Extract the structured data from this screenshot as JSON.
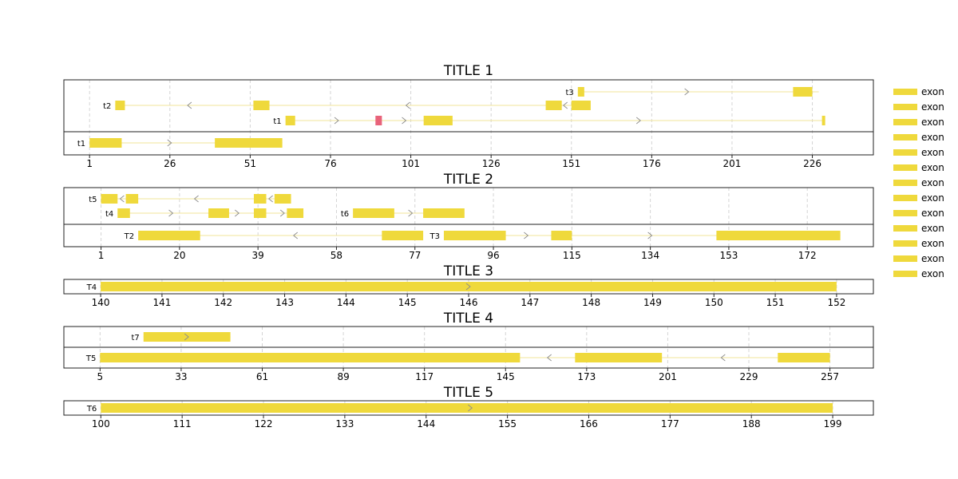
{
  "chart_data": [
    {
      "type": "gene-track",
      "title": "TITLE 1",
      "xlim": [
        -7,
        245
      ],
      "xticks": [
        1,
        26,
        51,
        76,
        101,
        126,
        151,
        176,
        201,
        226
      ],
      "grid": true,
      "lanes": [
        [
          {
            "name": "t3",
            "row": 0,
            "start": 153,
            "end": 228,
            "strand": "+",
            "exons": [
              [
                153,
                155
              ],
              [
                220,
                226
              ]
            ],
            "arrows": [
              187
            ]
          },
          {
            "name": "t2",
            "row": 1,
            "start": 9,
            "end": 157,
            "strand": "-",
            "exons": [
              [
                9,
                12
              ],
              [
                52,
                57
              ],
              [
                143,
                148
              ],
              [
                151,
                157
              ]
            ],
            "arrows": [
              32,
              100,
              149
            ]
          },
          {
            "name": "t1",
            "row": 2,
            "start": 62,
            "end": 230,
            "strand": "+",
            "exons": [
              [
                62,
                65
              ],
              [
                90,
                92,
                "highlight"
              ],
              [
                105,
                114
              ],
              [
                229,
                230
              ]
            ],
            "arrows": [
              78,
              99,
              172
            ]
          }
        ],
        [
          {
            "name": "t1",
            "row": 0,
            "start": 1,
            "end": 61,
            "strand": "+",
            "exons": [
              [
                1,
                11
              ],
              [
                40,
                61
              ]
            ],
            "arrows": [
              26
            ]
          }
        ]
      ]
    },
    {
      "type": "gene-track",
      "title": "TITLE 2",
      "xlim": [
        -8,
        188
      ],
      "xticks": [
        1,
        20,
        39,
        58,
        77,
        96,
        115,
        134,
        153,
        172
      ],
      "grid": true,
      "lanes": [
        [
          {
            "name": "t5",
            "row": 0,
            "start": 1,
            "end": 47,
            "strand": "-",
            "exons": [
              [
                1,
                5
              ],
              [
                7,
                10
              ],
              [
                38,
                41
              ],
              [
                43,
                47
              ]
            ],
            "arrows": [
              6,
              24,
              42
            ]
          },
          {
            "name": "t4",
            "row": 1,
            "start": 5,
            "end": 50,
            "strand": "+",
            "exons": [
              [
                5,
                8
              ],
              [
                27,
                32
              ],
              [
                38,
                41
              ],
              [
                46,
                50
              ]
            ],
            "arrows": [
              18,
              34,
              45
            ]
          },
          {
            "name": "t6",
            "row": 1,
            "start": 62,
            "end": 89,
            "strand": "+",
            "exons": [
              [
                62,
                72
              ],
              [
                79,
                89
              ]
            ],
            "arrows": [
              76
            ]
          }
        ],
        [
          {
            "name": "T2",
            "row": 0,
            "start": 10,
            "end": 79,
            "strand": "-",
            "exons": [
              [
                10,
                25
              ],
              [
                69,
                79
              ]
            ],
            "arrows": [
              48
            ]
          },
          {
            "name": "T3",
            "row": 0,
            "start": 84,
            "end": 180,
            "strand": "+",
            "exons": [
              [
                84,
                99
              ],
              [
                110,
                115
              ],
              [
                150,
                180
              ]
            ],
            "arrows": [
              104,
              134
            ]
          }
        ]
      ]
    },
    {
      "type": "gene-track",
      "title": "TITLE 3",
      "xlim": [
        139.4,
        152.6
      ],
      "xticks": [
        140,
        141,
        142,
        143,
        144,
        145,
        146,
        147,
        148,
        149,
        150,
        151,
        152
      ],
      "grid": true,
      "lanes": [
        [
          {
            "name": "T4",
            "row": 0,
            "start": 140,
            "end": 152,
            "strand": "+",
            "exons": [
              [
                140,
                152
              ]
            ],
            "arrows": [
              146
            ]
          }
        ]
      ]
    },
    {
      "type": "gene-track",
      "title": "TITLE 4",
      "xlim": [
        -7.5,
        272
      ],
      "xticks": [
        5,
        33,
        61,
        89,
        117,
        145,
        173,
        201,
        229,
        257
      ],
      "grid": true,
      "lanes": [
        [
          {
            "name": "t7",
            "row": 0,
            "start": 20,
            "end": 50,
            "strand": "+",
            "exons": [
              [
                20,
                50
              ]
            ],
            "arrows": [
              35
            ]
          }
        ],
        [
          {
            "name": "T5",
            "row": 0,
            "start": 5,
            "end": 257,
            "strand": "-",
            "exons": [
              [
                5,
                150
              ],
              [
                169,
                199
              ],
              [
                239,
                257
              ]
            ],
            "arrows": [
              160,
              220
            ]
          }
        ]
      ]
    },
    {
      "type": "gene-track",
      "title": "TITLE 5",
      "xlim": [
        95,
        204.5
      ],
      "xticks": [
        100,
        111,
        122,
        133,
        144,
        155,
        166,
        177,
        188,
        199
      ],
      "grid": true,
      "lanes": [
        [
          {
            "name": "T6",
            "row": 0,
            "start": 100,
            "end": 199,
            "strand": "+",
            "exons": [
              [
                100,
                199
              ]
            ],
            "arrows": [
              150
            ]
          }
        ]
      ]
    }
  ],
  "legend": {
    "placement": "right",
    "items": [
      "exon",
      "exon",
      "exon",
      "exon",
      "exon",
      "exon",
      "exon",
      "exon",
      "exon",
      "exon",
      "exon",
      "exon",
      "exon"
    ]
  },
  "colors": {
    "exon": "#efd93c",
    "exon_highlight": "#e8637a",
    "intron": "#f2e49a",
    "arrow": "#8c8c8c",
    "grid": "#d4d4d4",
    "frame": "#222222"
  }
}
